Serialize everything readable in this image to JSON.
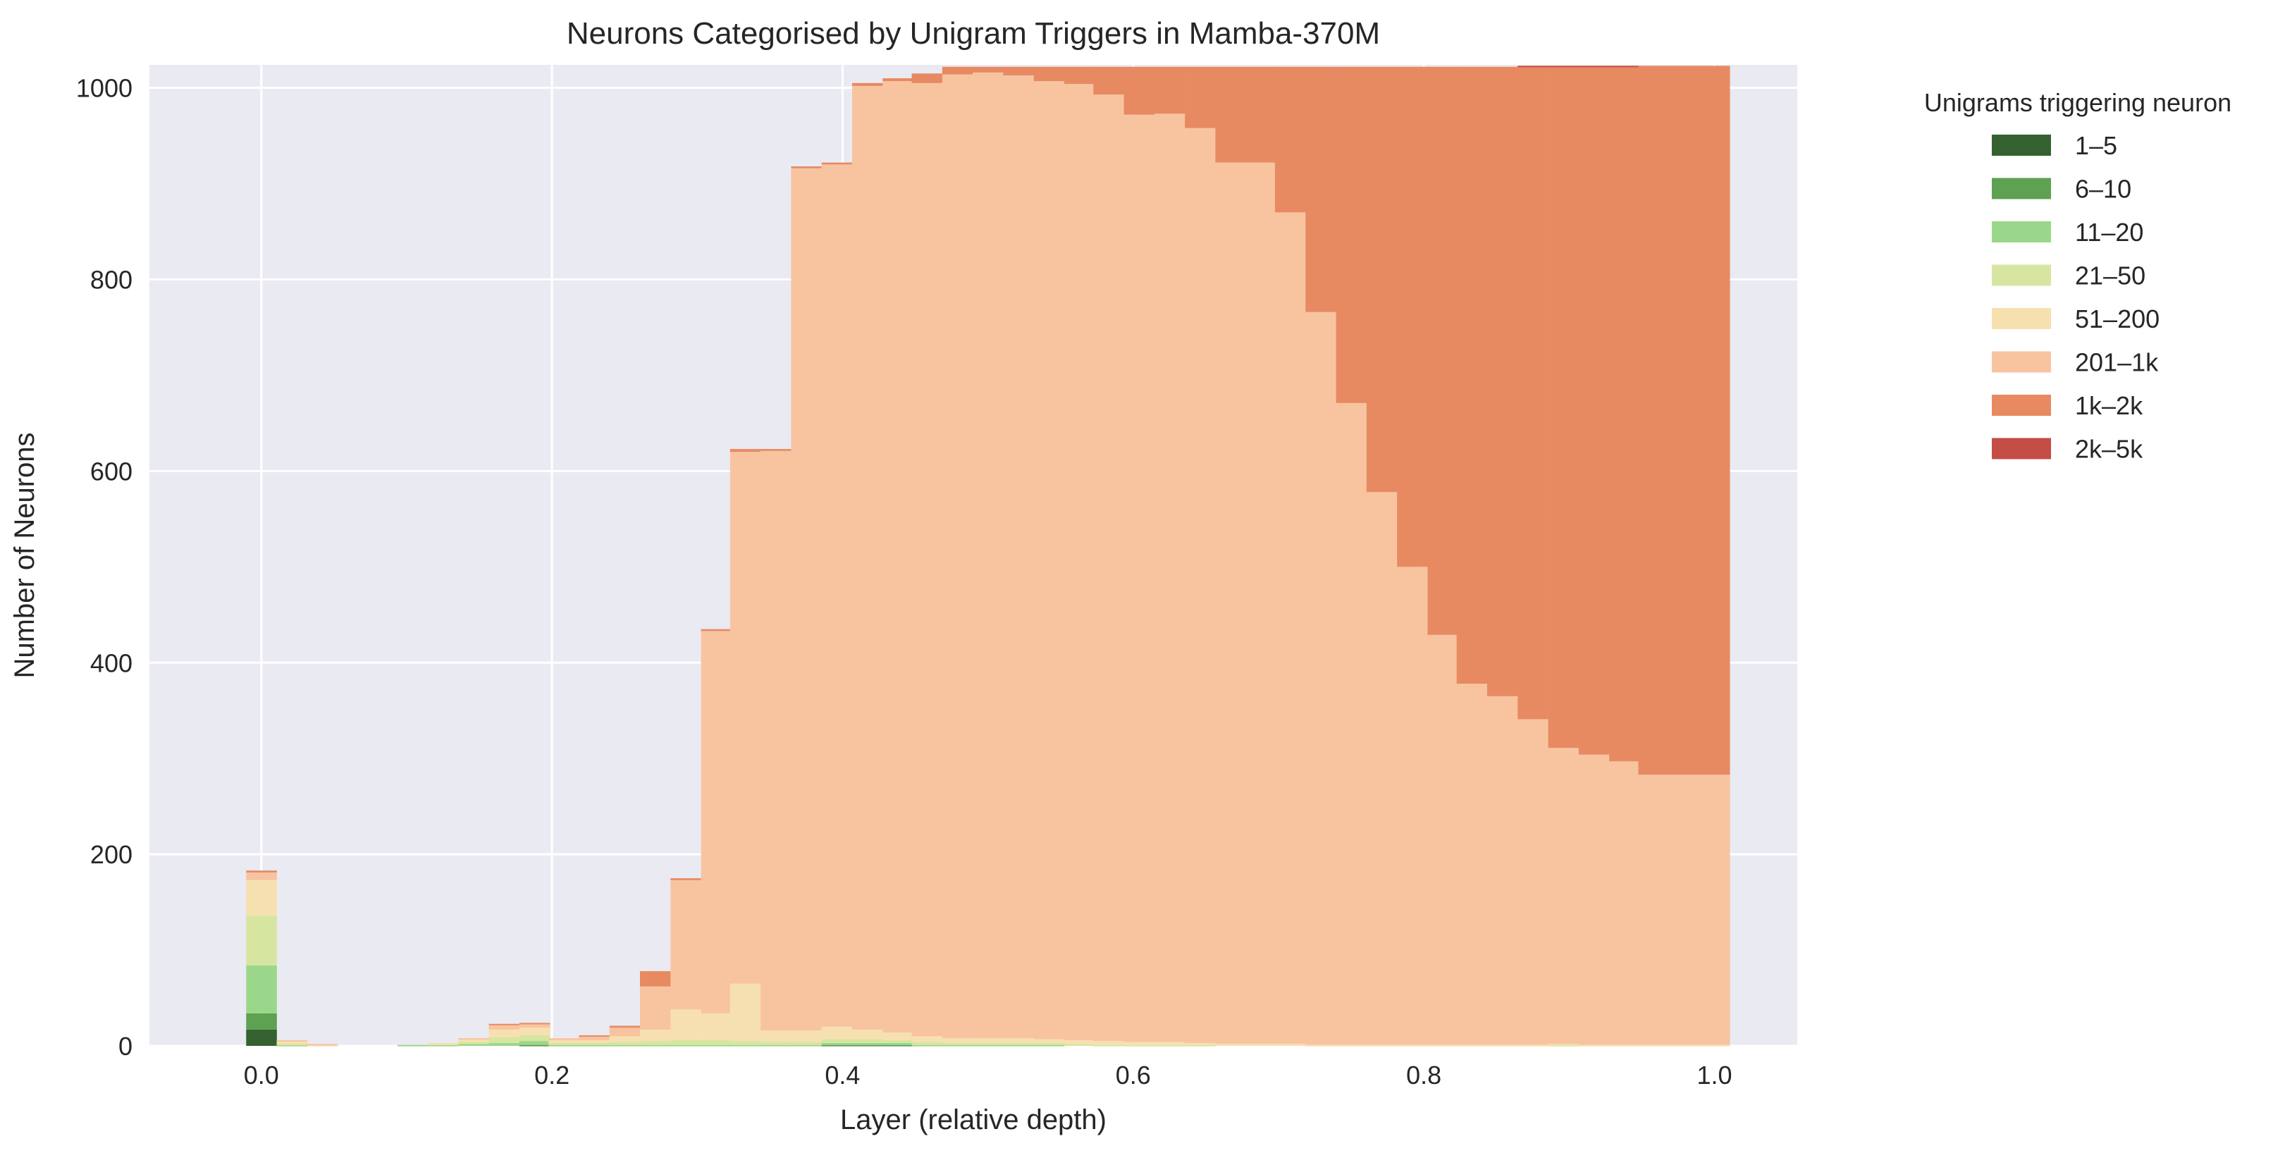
{
  "chart_data": {
    "type": "bar",
    "title": "Neurons Categorised by Unigram Triggers in Mamba-370M",
    "xlabel": "Layer (relative depth)",
    "ylabel": "Number of Neurons",
    "xlim": [
      -0.077,
      1.057
    ],
    "ylim": [
      0,
      1024
    ],
    "x_ticks": [
      0.0,
      0.2,
      0.4,
      0.6,
      0.8,
      1.0
    ],
    "x_tick_labels": [
      "0.0",
      "0.2",
      "0.4",
      "0.6",
      "0.8",
      "1.0"
    ],
    "y_ticks": [
      0,
      200,
      400,
      600,
      800,
      1000
    ],
    "y_tick_labels": [
      "0",
      "200",
      "400",
      "600",
      "800",
      "1000"
    ],
    "grid": true,
    "legend_title": "Unigrams triggering neuron",
    "legend_position": "outside-right",
    "series": [
      {
        "name": "1–5",
        "color": "#356130"
      },
      {
        "name": "6–10",
        "color": "#5ea151"
      },
      {
        "name": "11–20",
        "color": "#9bd78a"
      },
      {
        "name": "21–50",
        "color": "#d6e6a0"
      },
      {
        "name": "51–200",
        "color": "#f7e0b0"
      },
      {
        "name": "201–1k",
        "color": "#f8c4a0"
      },
      {
        "name": "1k–2k",
        "color": "#e78a62"
      },
      {
        "name": "2k–5k",
        "color": "#c44d46"
      }
    ],
    "layers": [
      {
        "x": 0.0,
        "values": [
          17,
          17,
          50,
          52,
          37,
          8,
          2,
          0
        ]
      },
      {
        "x": 0.021,
        "values": [
          0,
          0,
          1,
          1,
          3,
          1,
          0,
          0
        ]
      },
      {
        "x": 0.042,
        "values": [
          0,
          0,
          0,
          0,
          1,
          1,
          0,
          0
        ]
      },
      {
        "x": 0.063,
        "values": [
          0,
          0,
          0,
          0,
          0,
          0,
          0,
          0
        ]
      },
      {
        "x": 0.083,
        "values": [
          0,
          0,
          0,
          0,
          0,
          0,
          0,
          0
        ]
      },
      {
        "x": 0.104,
        "values": [
          0,
          0,
          1,
          0,
          0,
          0,
          0,
          0
        ]
      },
      {
        "x": 0.125,
        "values": [
          0,
          0,
          1,
          1,
          1,
          0,
          0,
          0
        ]
      },
      {
        "x": 0.146,
        "values": [
          0,
          0,
          2,
          2,
          3,
          1,
          0,
          0
        ]
      },
      {
        "x": 0.167,
        "values": [
          0,
          0,
          3,
          6,
          8,
          5,
          1,
          0
        ]
      },
      {
        "x": 0.188,
        "values": [
          0,
          1,
          4,
          6,
          8,
          4,
          1,
          0
        ]
      },
      {
        "x": 0.208,
        "values": [
          0,
          0,
          1,
          2,
          3,
          2,
          0,
          0
        ]
      },
      {
        "x": 0.229,
        "values": [
          0,
          0,
          1,
          2,
          3,
          4,
          1,
          0
        ]
      },
      {
        "x": 0.25,
        "values": [
          0,
          0,
          1,
          3,
          6,
          9,
          2,
          0
        ]
      },
      {
        "x": 0.271,
        "values": [
          0,
          0,
          1,
          4,
          12,
          45,
          16,
          0
        ]
      },
      {
        "x": 0.292,
        "values": [
          0,
          0,
          1,
          5,
          32,
          135,
          2,
          0
        ]
      },
      {
        "x": 0.313,
        "values": [
          0,
          0,
          1,
          5,
          28,
          399,
          2,
          0
        ]
      },
      {
        "x": 0.333,
        "values": [
          0,
          0,
          1,
          4,
          60,
          555,
          3,
          0
        ]
      },
      {
        "x": 0.354,
        "values": [
          0,
          0,
          1,
          3,
          12,
          605,
          2,
          0
        ]
      },
      {
        "x": 0.375,
        "values": [
          0,
          0,
          1,
          3,
          12,
          900,
          2,
          0
        ]
      },
      {
        "x": 0.396,
        "values": [
          0,
          1,
          2,
          4,
          13,
          900,
          2,
          0
        ]
      },
      {
        "x": 0.417,
        "values": [
          0,
          1,
          2,
          4,
          10,
          985,
          3,
          0
        ]
      },
      {
        "x": 0.438,
        "values": [
          0,
          1,
          2,
          3,
          8,
          993,
          3,
          0
        ]
      },
      {
        "x": 0.458,
        "values": [
          0,
          0,
          1,
          3,
          6,
          995,
          10,
          0
        ]
      },
      {
        "x": 0.479,
        "values": [
          0,
          0,
          1,
          2,
          5,
          1006,
          8,
          0
        ]
      },
      {
        "x": 0.5,
        "values": [
          0,
          0,
          1,
          2,
          5,
          1008,
          6,
          0
        ]
      },
      {
        "x": 0.521,
        "values": [
          0,
          0,
          1,
          2,
          5,
          1005,
          9,
          0
        ]
      },
      {
        "x": 0.542,
        "values": [
          0,
          0,
          1,
          2,
          4,
          1000,
          15,
          0
        ]
      },
      {
        "x": 0.563,
        "values": [
          0,
          0,
          0,
          2,
          4,
          998,
          18,
          0
        ]
      },
      {
        "x": 0.583,
        "values": [
          0,
          0,
          0,
          1,
          4,
          988,
          29,
          0
        ]
      },
      {
        "x": 0.604,
        "values": [
          0,
          0,
          0,
          1,
          3,
          968,
          50,
          0
        ]
      },
      {
        "x": 0.625,
        "values": [
          0,
          0,
          0,
          1,
          3,
          969,
          49,
          0
        ]
      },
      {
        "x": 0.646,
        "values": [
          0,
          0,
          0,
          1,
          2,
          955,
          64,
          0
        ]
      },
      {
        "x": 0.667,
        "values": [
          0,
          0,
          0,
          0,
          2,
          920,
          100,
          0
        ]
      },
      {
        "x": 0.688,
        "values": [
          0,
          0,
          0,
          0,
          2,
          920,
          100,
          0
        ]
      },
      {
        "x": 0.708,
        "values": [
          0,
          0,
          0,
          0,
          2,
          868,
          152,
          0
        ]
      },
      {
        "x": 0.729,
        "values": [
          0,
          0,
          0,
          0,
          1,
          765,
          256,
          0
        ]
      },
      {
        "x": 0.75,
        "values": [
          0,
          0,
          0,
          0,
          1,
          670,
          351,
          0
        ]
      },
      {
        "x": 0.771,
        "values": [
          0,
          0,
          0,
          0,
          1,
          577,
          444,
          0
        ]
      },
      {
        "x": 0.792,
        "values": [
          0,
          0,
          0,
          0,
          1,
          499,
          522,
          0
        ]
      },
      {
        "x": 0.813,
        "values": [
          0,
          0,
          0,
          0,
          1,
          428,
          593,
          0
        ]
      },
      {
        "x": 0.833,
        "values": [
          0,
          0,
          0,
          0,
          1,
          377,
          644,
          0
        ]
      },
      {
        "x": 0.854,
        "values": [
          0,
          0,
          0,
          0,
          1,
          364,
          657,
          0
        ]
      },
      {
        "x": 0.875,
        "values": [
          0,
          0,
          0,
          0,
          1,
          340,
          681,
          1
        ]
      },
      {
        "x": 0.896,
        "values": [
          0,
          0,
          0,
          1,
          1,
          309,
          711,
          1
        ]
      },
      {
        "x": 0.917,
        "values": [
          0,
          0,
          0,
          0,
          1,
          303,
          718,
          1
        ]
      },
      {
        "x": 0.938,
        "values": [
          0,
          0,
          0,
          0,
          1,
          296,
          725,
          1
        ]
      },
      {
        "x": 0.958,
        "values": [
          0,
          0,
          0,
          0,
          1,
          282,
          740,
          0
        ]
      },
      {
        "x": 0.979,
        "values": [
          0,
          0,
          0,
          0,
          1,
          282,
          740,
          0
        ]
      },
      {
        "x": 1.0,
        "values": [
          0,
          0,
          0,
          0,
          1,
          282,
          740,
          0
        ]
      }
    ]
  }
}
